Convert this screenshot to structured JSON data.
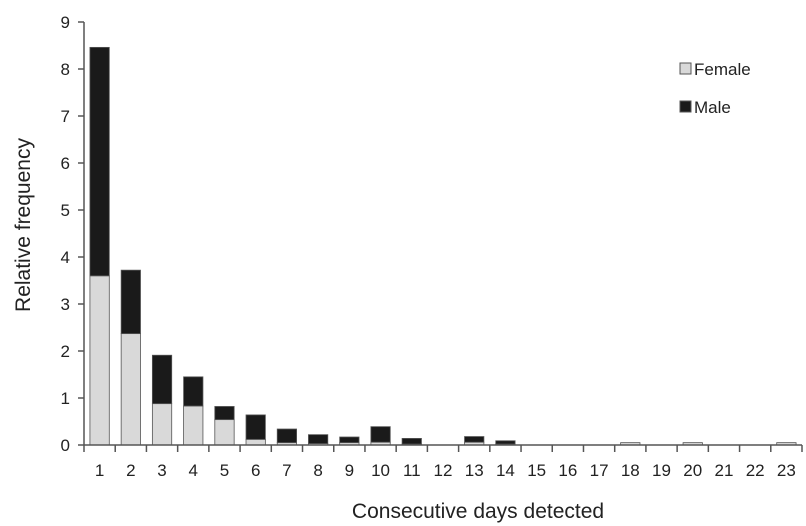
{
  "chart_data": {
    "type": "bar",
    "stacked": true,
    "xlabel": "Consecutive days detected",
    "ylabel": "Relative frequency",
    "ylim": [
      0,
      9
    ],
    "yticks": [
      "0",
      "1",
      "2",
      "3",
      "4",
      "5",
      "6",
      "7",
      "8",
      "9"
    ],
    "categories": [
      "1",
      "2",
      "3",
      "4",
      "5",
      "6",
      "7",
      "8",
      "9",
      "10",
      "11",
      "12",
      "13",
      "14",
      "15",
      "16",
      "17",
      "18",
      "19",
      "20",
      "21",
      "22",
      "23"
    ],
    "series": [
      {
        "name": "Female",
        "color": "#d9d9d9",
        "values": [
          3.6,
          2.37,
          0.88,
          0.83,
          0.54,
          0.12,
          0.05,
          0.03,
          0.05,
          0.06,
          0.02,
          0,
          0.06,
          0.02,
          0,
          0,
          0,
          0.05,
          0,
          0.05,
          0,
          0,
          0.05
        ]
      },
      {
        "name": "Male",
        "color": "#1a1a1a",
        "values": [
          4.86,
          1.35,
          1.03,
          0.62,
          0.28,
          0.52,
          0.29,
          0.19,
          0.12,
          0.33,
          0.12,
          0,
          0.12,
          0.07,
          0,
          0,
          0,
          0,
          0,
          0,
          0,
          0,
          0
        ]
      }
    ],
    "legend_position": "top-right",
    "grid": false
  }
}
